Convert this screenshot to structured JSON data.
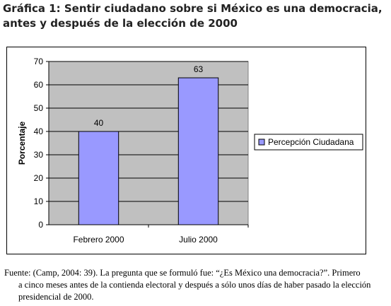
{
  "caption": {
    "title": "Gráfica 1: Sentir ciudadano sobre si México es  una democracia, antes y después de la elección de 2000"
  },
  "chart_data": {
    "type": "bar",
    "categories": [
      "Febrero 2000",
      "Julio 2000"
    ],
    "series": [
      {
        "name": "Percepción Ciudadana",
        "values": [
          40,
          63
        ],
        "color": "#9999ff"
      }
    ],
    "ylabel": "Porcentaje",
    "xlabel": "",
    "ylim": [
      0,
      70
    ],
    "yticks": [
      0,
      10,
      20,
      30,
      40,
      50,
      60,
      70
    ],
    "grid": true,
    "legend_position": "right",
    "plot_background": "#c0c0c0",
    "data_labels": true
  },
  "source_note": {
    "line1": "Fuente: (Camp, 2004: 39). La pregunta que se formuló fue: “¿Es México una democracia?”. Primero",
    "line2": "a cinco meses antes de la contienda electoral y después a sólo unos días de haber pasado la elección presidencial de 2000."
  }
}
